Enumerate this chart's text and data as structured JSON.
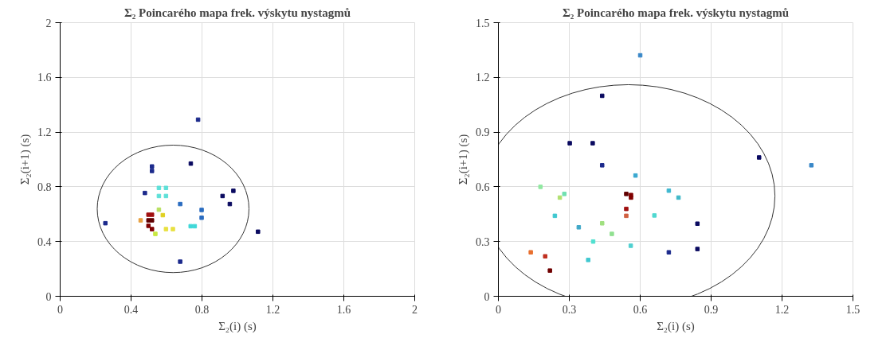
{
  "chart_data": [
    {
      "type": "scatter",
      "title": "Σ₂ Poincarého mapa frek. výskytu nystagmů",
      "xlabel": "Σ₂(i) (s)",
      "ylabel": "Σ₂(i+1) (s)",
      "xlim": [
        0,
        2
      ],
      "ylim": [
        0,
        2
      ],
      "xticks": [
        0,
        0.4,
        0.8,
        1.2,
        1.6,
        2
      ],
      "yticks": [
        0,
        0.4,
        0.8,
        1.2,
        1.6,
        2
      ],
      "grid": true,
      "marker": "square",
      "series": [
        {
          "x": [
            0.255,
            0.778,
            0.737,
            0.518,
            0.518,
            0.478,
            0.677,
            0.798,
            0.798,
            0.916,
            0.977,
            0.957,
            1.116,
            0.677,
            0.557,
            0.597,
            0.557,
            0.597,
            0.736,
            0.759,
            0.498,
            0.518,
            0.498,
            0.518,
            0.498,
            0.518,
            0.454,
            0.557,
            0.579,
            0.597,
            0.636,
            0.537
          ],
          "values": [
            0.534,
            1.291,
            0.97,
            0.949,
            0.916,
            0.755,
            0.674,
            0.631,
            0.574,
            0.733,
            0.771,
            0.674,
            0.472,
            0.253,
            0.792,
            0.792,
            0.733,
            0.733,
            0.512,
            0.512,
            0.596,
            0.596,
            0.555,
            0.555,
            0.515,
            0.491,
            0.555,
            0.633,
            0.593,
            0.491,
            0.491,
            0.456
          ],
          "colors": [
            "#1c2a8c",
            "#1c2a8c",
            "#0a0a60",
            "#1c2a8c",
            "#1c2a8c",
            "#1c2a8c",
            "#2a6cc0",
            "#2a6cc0",
            "#2a6cc0",
            "#0a0a60",
            "#0a0a60",
            "#0a0a60",
            "#0a0a60",
            "#1c2a8c",
            "#5ee0d8",
            "#5ee0d8",
            "#5ee0d8",
            "#5ee0d8",
            "#40d8d8",
            "#40d8d8",
            "#a01010",
            "#a01010",
            "#600000",
            "#600000",
            "#800000",
            "#800000",
            "#e8a040",
            "#b8e060",
            "#e0d020",
            "#e8e040",
            "#e8e040",
            "#c8e840"
          ]
        }
      ]
    },
    {
      "type": "scatter",
      "title": "Σ₂ Poincarého mapa frek. výskytu nystagmů",
      "xlabel": "Σ₂(i) (s)",
      "ylabel": "Σ₂(i+1) (s)",
      "xlim": [
        0,
        1.5
      ],
      "ylim": [
        0,
        1.5
      ],
      "xticks": [
        0,
        0.3,
        0.6,
        0.9,
        1.2,
        1.5
      ],
      "yticks": [
        0,
        0.3,
        0.6,
        0.9,
        1.2,
        1.5
      ],
      "grid": true,
      "marker": "square",
      "series": [
        {
          "x": [
            0.6,
            0.439,
            0.302,
            0.399,
            0.439,
            0.58,
            0.178,
            0.26,
            0.279,
            0.239,
            0.34,
            0.401,
            0.38,
            0.439,
            0.48,
            0.56,
            0.541,
            0.561,
            0.561,
            0.541,
            0.541,
            0.137,
            0.198,
            0.218,
            0.721,
            0.762,
            0.66,
            0.842,
            0.842,
            0.721,
            1.103,
            1.324
          ],
          "values": [
            1.321,
            1.099,
            0.839,
            0.839,
            0.718,
            0.662,
            0.6,
            0.541,
            0.561,
            0.441,
            0.378,
            0.3,
            0.199,
            0.4,
            0.342,
            0.277,
            0.561,
            0.555,
            0.541,
            0.479,
            0.441,
            0.241,
            0.219,
            0.141,
            0.579,
            0.541,
            0.443,
            0.398,
            0.259,
            0.241,
            0.761,
            0.718
          ],
          "colors": [
            "#3a88c8",
            "#0a0a60",
            "#0a0a60",
            "#0a0a60",
            "#1c2a8c",
            "#3aa8d0",
            "#90e8a0",
            "#b0e070",
            "#70e0b0",
            "#40c8d0",
            "#40a8c8",
            "#50e0d0",
            "#40c8d0",
            "#a0e080",
            "#90e090",
            "#50d0d0",
            "#600000",
            "#800000",
            "#800000",
            "#a01010",
            "#d06040",
            "#e87030",
            "#c03020",
            "#700000",
            "#40b8d0",
            "#40b8c8",
            "#50d8d0",
            "#0a0a60",
            "#0a0a60",
            "#1c2a8c",
            "#0a0a60",
            "#3a88c8"
          ]
        }
      ]
    }
  ]
}
